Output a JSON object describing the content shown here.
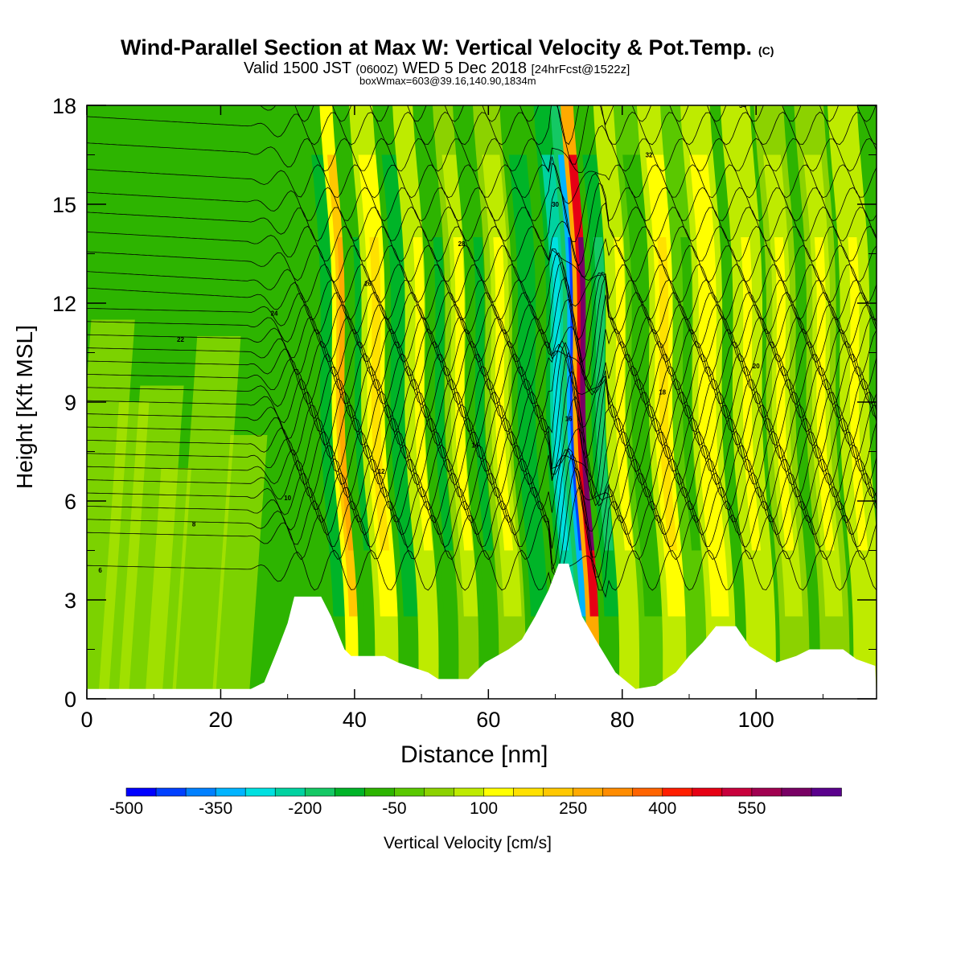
{
  "header": {
    "title": "Wind-Parallel Section at Max W: Vertical Velocity & Pot.Temp.",
    "title_mark": "(C)",
    "valid_prefix": "Valid 1500 JST",
    "valid_utc": "(0600Z)",
    "valid_date": "WED 5 Dec 2018",
    "valid_fcst": "[24hrFcst@1522z]",
    "box_info": "boxWmax=603@39.16,140.90,1834m"
  },
  "chart_data": {
    "type": "heatmap",
    "title": "Wind-Parallel Section at Max W: Vertical Velocity & Pot.Temp.",
    "xlabel": "Distance [nm]",
    "ylabel": "Height [Kft MSL]",
    "xlim": [
      0,
      118
    ],
    "ylim": [
      0,
      18
    ],
    "x_ticks": [
      "0",
      "20",
      "40",
      "60",
      "80",
      "100"
    ],
    "y_ticks": [
      "0",
      "3",
      "6",
      "9",
      "12",
      "15",
      "18"
    ],
    "colorbar": {
      "label": "Vertical Velocity [cm/s]",
      "tick_labels": [
        "-500",
        "-350",
        "-200",
        "-50",
        "100",
        "250",
        "400",
        "550"
      ],
      "colors": [
        "#0000ff",
        "#0040ff",
        "#0080ff",
        "#00b4ff",
        "#00e0e0",
        "#00d2a0",
        "#14c864",
        "#00b428",
        "#2db400",
        "#5ac800",
        "#8cd200",
        "#beeb00",
        "#ffff00",
        "#ffe100",
        "#ffc800",
        "#ffaa00",
        "#ff8c00",
        "#ff6400",
        "#ff1e00",
        "#e60014",
        "#c8003c",
        "#a00050",
        "#780064",
        "#5a008c"
      ]
    },
    "wave_columns": [
      {
        "x": 36.5,
        "w": -150
      },
      {
        "x": 38.5,
        "w": 280
      },
      {
        "x": 41,
        "w": -120
      },
      {
        "x": 43.5,
        "w": 150
      },
      {
        "x": 47,
        "w": -150
      },
      {
        "x": 50,
        "w": 120
      },
      {
        "x": 53,
        "w": -130
      },
      {
        "x": 56,
        "w": 110
      },
      {
        "x": 59,
        "w": -120
      },
      {
        "x": 62,
        "w": 110
      },
      {
        "x": 66,
        "w": -150
      },
      {
        "x": 70.5,
        "w": -300
      },
      {
        "x": 73,
        "w": -420
      },
      {
        "x": 74.5,
        "w": 603
      },
      {
        "x": 77,
        "w": -200
      },
      {
        "x": 80,
        "w": 120
      },
      {
        "x": 83,
        "w": -100
      },
      {
        "x": 86.5,
        "w": 160
      },
      {
        "x": 90,
        "w": -60
      },
      {
        "x": 93,
        "w": 140
      },
      {
        "x": 99,
        "w": 120
      },
      {
        "x": 104,
        "w": 100
      },
      {
        "x": 110,
        "w": 100
      },
      {
        "x": 115,
        "w": 130
      }
    ],
    "terrain": [
      [
        0,
        0.3
      ],
      [
        24.5,
        0.3
      ],
      [
        26.5,
        0.5
      ],
      [
        27.5,
        1.0
      ],
      [
        28.5,
        1.5
      ],
      [
        30,
        2.3
      ],
      [
        31,
        3.1
      ],
      [
        35,
        3.1
      ],
      [
        36.5,
        2.5
      ],
      [
        38.5,
        1.5
      ],
      [
        39.5,
        1.3
      ],
      [
        44.5,
        1.3
      ],
      [
        46.5,
        1.1
      ],
      [
        51,
        0.8
      ],
      [
        52.5,
        0.6
      ],
      [
        57,
        0.6
      ],
      [
        59.5,
        1.1
      ],
      [
        63,
        1.5
      ],
      [
        65,
        1.8
      ],
      [
        67,
        2.5
      ],
      [
        69,
        3.3
      ],
      [
        70.5,
        4.1
      ],
      [
        72,
        4.1
      ],
      [
        73,
        3.3
      ],
      [
        74,
        2.5
      ],
      [
        76,
        1.8
      ],
      [
        77.5,
        1.3
      ],
      [
        79,
        0.8
      ],
      [
        82,
        0.3
      ],
      [
        85,
        0.4
      ],
      [
        88,
        0.8
      ],
      [
        90,
        1.3
      ],
      [
        92,
        1.7
      ],
      [
        94,
        2.2
      ],
      [
        97,
        2.2
      ],
      [
        99,
        1.6
      ],
      [
        103,
        1.1
      ],
      [
        106,
        1.3
      ],
      [
        108,
        1.5
      ],
      [
        113,
        1.5
      ],
      [
        115,
        1.2
      ],
      [
        117.8,
        1.0
      ]
    ],
    "theta_contours": [
      {
        "base": 3.9,
        "label": "6"
      },
      {
        "base": 4.9,
        "label": "8"
      },
      {
        "base": 5.3,
        "label": "8"
      },
      {
        "base": 5.7,
        "label": "10"
      },
      {
        "base": 6.1,
        "label": "10"
      },
      {
        "base": 6.5,
        "label": "10"
      },
      {
        "base": 6.9,
        "label": "12"
      },
      {
        "base": 7.3,
        "label": "12"
      },
      {
        "base": 7.7,
        "label": "14"
      },
      {
        "base": 8.1,
        "label": "14"
      },
      {
        "base": 8.5,
        "label": "16"
      },
      {
        "base": 8.9,
        "label": "16"
      },
      {
        "base": 9.3,
        "label": "18"
      },
      {
        "base": 9.7,
        "label": "18"
      },
      {
        "base": 10.1,
        "label": "20"
      },
      {
        "base": 10.5,
        "label": "20"
      },
      {
        "base": 10.9,
        "label": "22"
      },
      {
        "base": 11.3,
        "label": "22"
      },
      {
        "base": 11.7,
        "label": "24"
      },
      {
        "base": 12.1,
        "label": "24"
      },
      {
        "base": 12.6,
        "label": "26"
      },
      {
        "base": 13.2,
        "label": "26"
      },
      {
        "base": 13.8,
        "label": "28"
      },
      {
        "base": 14.4,
        "label": "28"
      },
      {
        "base": 15.0,
        "label": "30"
      },
      {
        "base": 15.7,
        "label": "30"
      },
      {
        "base": 16.5,
        "label": "32"
      },
      {
        "base": 17.3,
        "label": "32"
      },
      {
        "base": 18.0,
        "label": "34"
      }
    ]
  }
}
